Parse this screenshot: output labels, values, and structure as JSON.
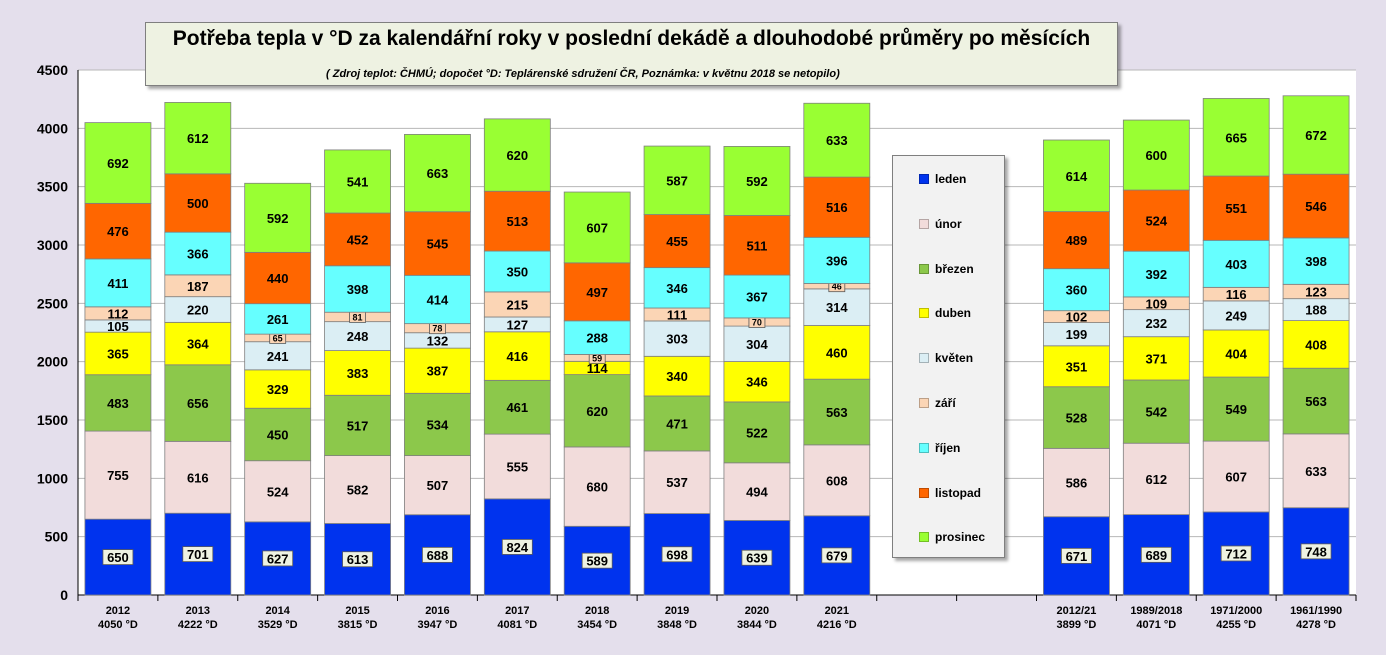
{
  "chart_data": {
    "type": "bar",
    "stacked": true,
    "title": "Potřeba tepla v °D za kalendářní roky v poslední dekádě a dlouhodobé průměry po měsících",
    "subtitle": "( Zdroj  teplot: ČHMÚ; dopočet °D: Teplárenské  sdružení  ČR, Poznámka:  v květnu 2018 se netopilo)",
    "ylim": [
      0,
      4500
    ],
    "yticks": [
      0,
      500,
      1000,
      1500,
      2000,
      2500,
      3000,
      3500,
      4000,
      4500
    ],
    "grid": true,
    "legend_position": "right, between the two bar groups",
    "categories": [
      {
        "label": "2012",
        "total_label": "4050 °D",
        "total": 4050
      },
      {
        "label": "2013",
        "total_label": "4222 °D",
        "total": 4222
      },
      {
        "label": "2014",
        "total_label": "3529 °D",
        "total": 3529
      },
      {
        "label": "2015",
        "total_label": "3815 °D",
        "total": 3815
      },
      {
        "label": "2016",
        "total_label": "3947 °D",
        "total": 3947
      },
      {
        "label": "2017",
        "total_label": "4081 °D",
        "total": 4081
      },
      {
        "label": "2018",
        "total_label": "3454 °D",
        "total": 3454
      },
      {
        "label": "2019",
        "total_label": "3848 °D",
        "total": 3848
      },
      {
        "label": "2020",
        "total_label": "3844 °D",
        "total": 3844
      },
      {
        "label": "2021",
        "total_label": "4216 °D",
        "total": 4216
      },
      {
        "label": "",
        "total_label": "",
        "total": null
      },
      {
        "label": "",
        "total_label": "",
        "total": null
      },
      {
        "label": "2012/21",
        "total_label": "3899 °D",
        "total": 3899
      },
      {
        "label": "1989/2018",
        "total_label": "4071 °D",
        "total": 4071
      },
      {
        "label": "1971/2000",
        "total_label": "4255 °D",
        "total": 4255
      },
      {
        "label": "1961/1990",
        "total_label": "4278 °D",
        "total": 4278
      }
    ],
    "series": [
      {
        "name": "leden",
        "color": "#0033ee",
        "values": [
          650,
          701,
          627,
          613,
          688,
          824,
          589,
          698,
          639,
          679,
          null,
          null,
          671,
          689,
          712,
          748
        ]
      },
      {
        "name": "únor",
        "color": "#f2dcdb",
        "values": [
          755,
          616,
          524,
          582,
          507,
          555,
          680,
          537,
          494,
          608,
          null,
          null,
          586,
          612,
          607,
          633
        ]
      },
      {
        "name": "březen",
        "color": "#8cc84b",
        "values": [
          483,
          656,
          450,
          517,
          534,
          461,
          620,
          471,
          522,
          563,
          null,
          null,
          528,
          542,
          549,
          563
        ]
      },
      {
        "name": "duben",
        "color": "#ffff00",
        "values": [
          365,
          364,
          329,
          383,
          387,
          416,
          114,
          340,
          346,
          460,
          null,
          null,
          351,
          371,
          404,
          408
        ]
      },
      {
        "name": "květen",
        "color": "#dbeef4",
        "values": [
          105,
          220,
          241,
          248,
          132,
          127,
          0,
          303,
          304,
          314,
          null,
          null,
          199,
          232,
          249,
          188
        ]
      },
      {
        "name": "září",
        "color": "#fbd5b5",
        "values": [
          112,
          187,
          65,
          81,
          78,
          215,
          59,
          111,
          70,
          46,
          null,
          null,
          102,
          109,
          116,
          123
        ]
      },
      {
        "name": "říjen",
        "color": "#66ffff",
        "values": [
          411,
          366,
          261,
          398,
          414,
          350,
          288,
          346,
          367,
          396,
          null,
          null,
          360,
          392,
          403,
          398
        ]
      },
      {
        "name": "listopad",
        "color": "#ff6600",
        "values": [
          476,
          500,
          440,
          452,
          545,
          513,
          497,
          455,
          511,
          516,
          null,
          null,
          489,
          524,
          551,
          546
        ]
      },
      {
        "name": "prosinec",
        "color": "#99ff33",
        "values": [
          692,
          612,
          592,
          541,
          663,
          620,
          607,
          587,
          592,
          633,
          null,
          null,
          614,
          600,
          665,
          672
        ]
      }
    ],
    "boxed_label_threshold": 90
  }
}
